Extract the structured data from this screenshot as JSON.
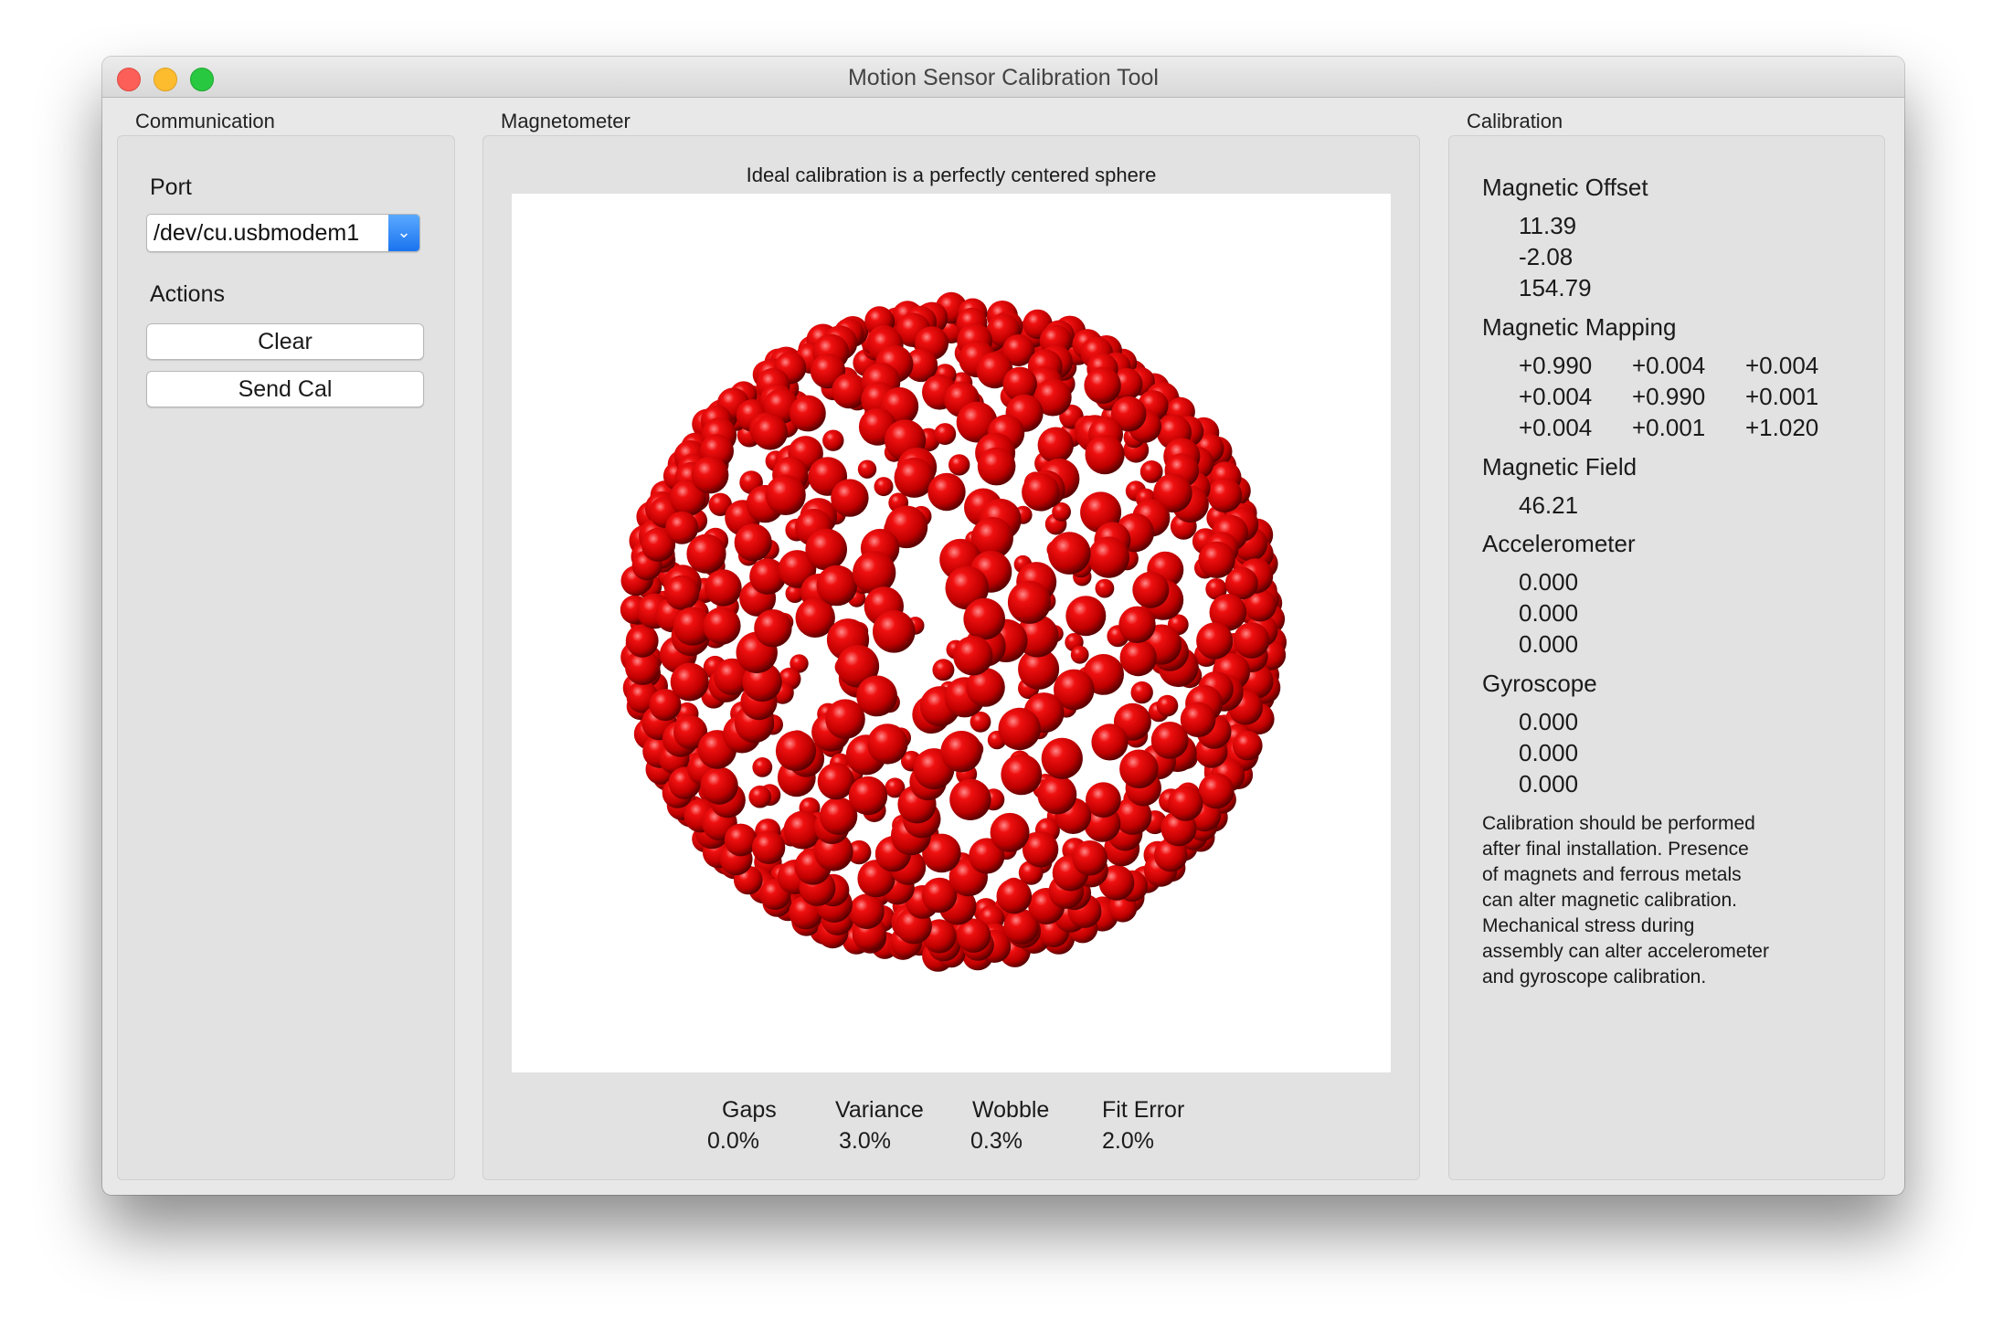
{
  "window": {
    "title": "Motion Sensor Calibration Tool"
  },
  "communication": {
    "group_label": "Communication",
    "port_label": "Port",
    "port_value": "/dev/cu.usbmodem1",
    "actions_label": "Actions",
    "clear_label": "Clear",
    "send_cal_label": "Send Cal"
  },
  "magnetometer": {
    "group_label": "Magnetometer",
    "caption": "Ideal calibration is a perfectly centered sphere",
    "point_color": "#d40000",
    "stats": [
      {
        "label": "Gaps",
        "value": "0.0%"
      },
      {
        "label": "Variance",
        "value": "3.0%"
      },
      {
        "label": "Wobble",
        "value": "0.3%"
      },
      {
        "label": "Fit Error",
        "value": "2.0%"
      }
    ]
  },
  "calibration": {
    "group_label": "Calibration",
    "offset_label": "Magnetic Offset",
    "offset": [
      "11.39",
      "-2.08",
      "154.79"
    ],
    "mapping_label": "Magnetic Mapping",
    "mapping": [
      [
        "+0.990",
        "+0.004",
        "+0.004"
      ],
      [
        "+0.004",
        "+0.990",
        "+0.001"
      ],
      [
        "+0.004",
        "+0.001",
        "+1.020"
      ]
    ],
    "field_label": "Magnetic Field",
    "field": "46.21",
    "accel_label": "Accelerometer",
    "accel": [
      "0.000",
      "0.000",
      "0.000"
    ],
    "gyro_label": "Gyroscope",
    "gyro": [
      "0.000",
      "0.000",
      "0.000"
    ],
    "note_lines": [
      "Calibration should be performed",
      "after final installation.  Presence",
      "of magnets and ferrous metals",
      "can alter magnetic calibration.",
      "Mechanical stress during",
      "assembly can alter accelerometer",
      "and gyroscope calibration."
    ]
  }
}
